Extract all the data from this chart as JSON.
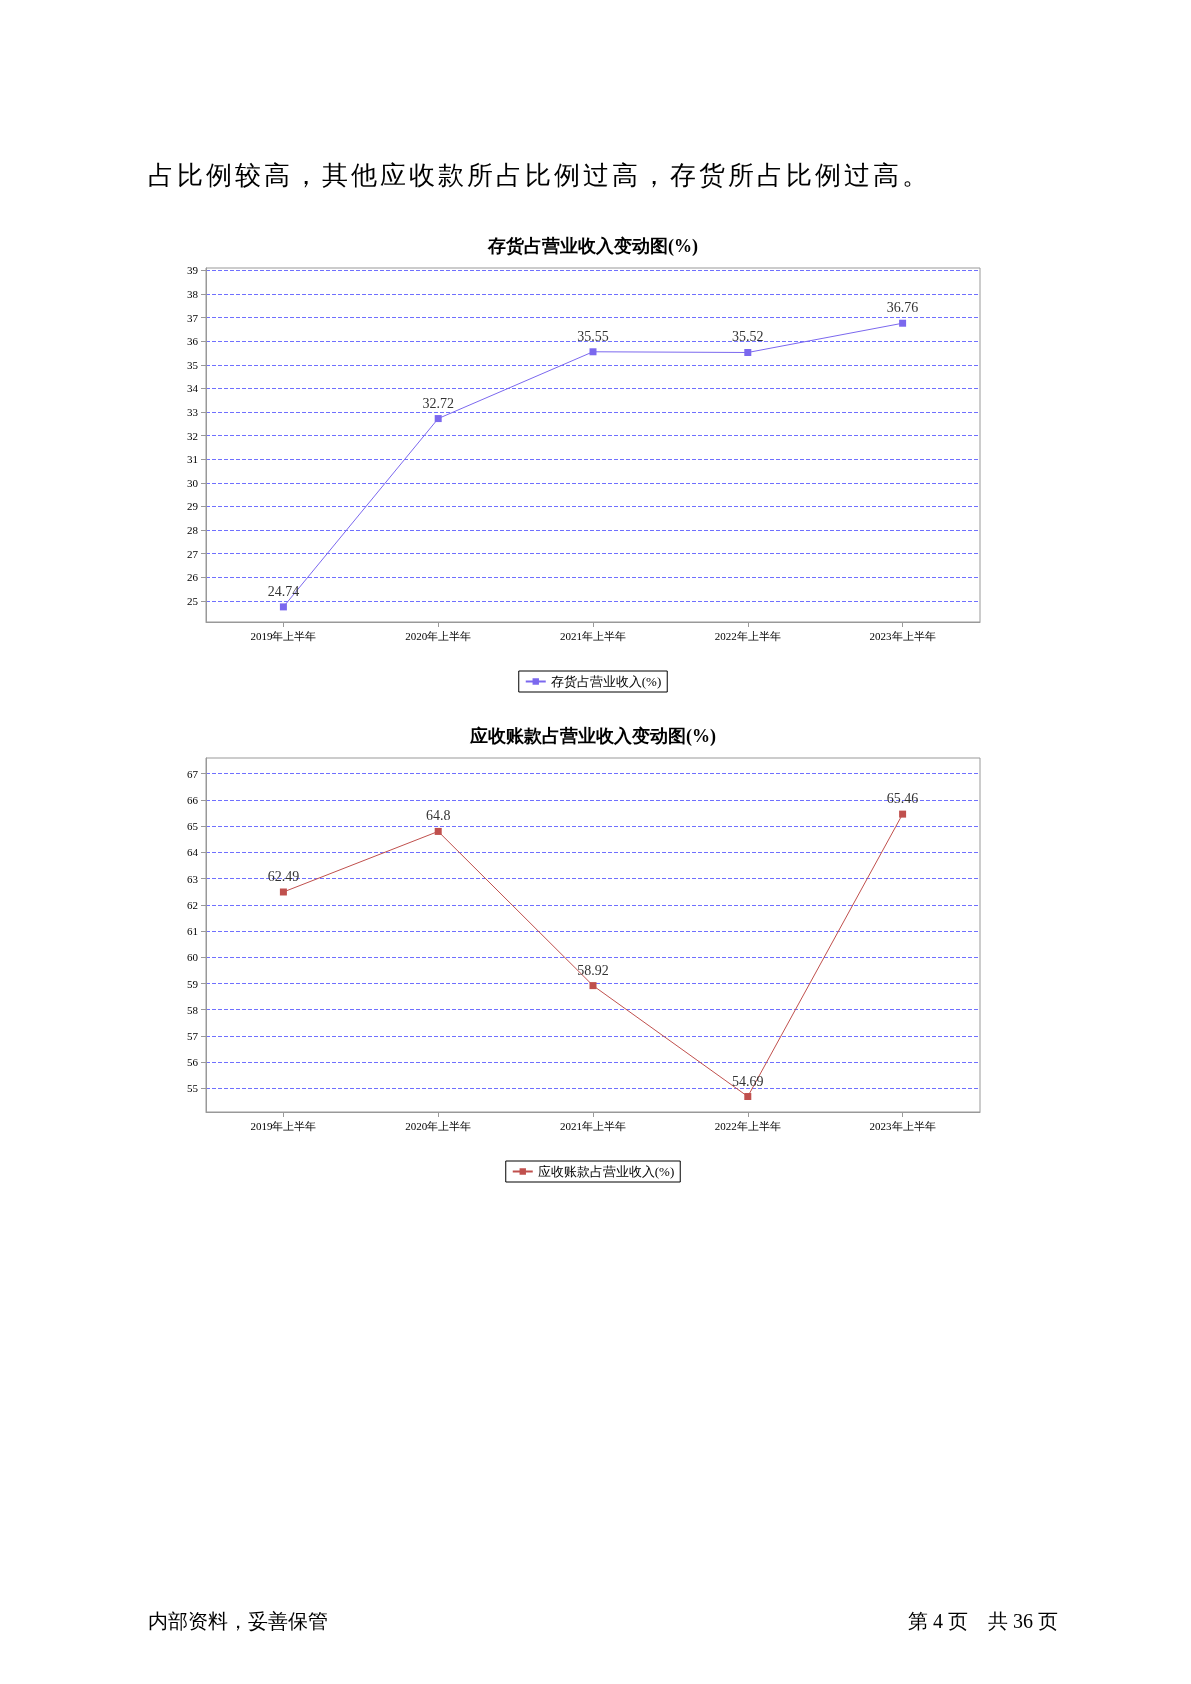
{
  "chart_data": [
    {
      "type": "line",
      "title": "存货占营业收入变动图(%)",
      "annotations": [
        "占比例较高，其他应收款所占比例过高，存货所占比例过高。"
      ],
      "categories": [
        "2019年上半年",
        "2020年上半年",
        "2021年上半年",
        "2022年上半年",
        "2023年上半年"
      ],
      "series": [
        {
          "name": "存货占营业收入(%)",
          "color": "#7b68ee",
          "values": [
            24.74,
            32.72,
            35.55,
            35.52,
            36.76
          ]
        }
      ],
      "ylim": [
        24.1,
        39.1
      ],
      "yticks": [
        25,
        26,
        27,
        28,
        29,
        30,
        31,
        32,
        33,
        34,
        35,
        36,
        37,
        38,
        39
      ],
      "grid": "y",
      "legend": "bottom",
      "marker": "square",
      "data_labels": true
    },
    {
      "type": "line",
      "title": "应收账款占营业收入变动图(%)",
      "annotations": [
        "内部资料，妥善保管",
        "第 4 页　共 36 页"
      ],
      "categories": [
        "2019年上半年",
        "2020年上半年",
        "2021年上半年",
        "2022年上半年",
        "2023年上半年"
      ],
      "series": [
        {
          "name": "应收账款占营业收入(%)",
          "color": "#c0504d",
          "values": [
            62.49,
            64.8,
            58.92,
            54.69,
            65.46
          ]
        }
      ],
      "ylim": [
        54.1,
        67.6
      ],
      "yticks": [
        55,
        56,
        57,
        58,
        59,
        60,
        61,
        62,
        63,
        64,
        65,
        66,
        67
      ],
      "grid": "y",
      "legend": "bottom",
      "marker": "square",
      "data_labels": true
    }
  ]
}
